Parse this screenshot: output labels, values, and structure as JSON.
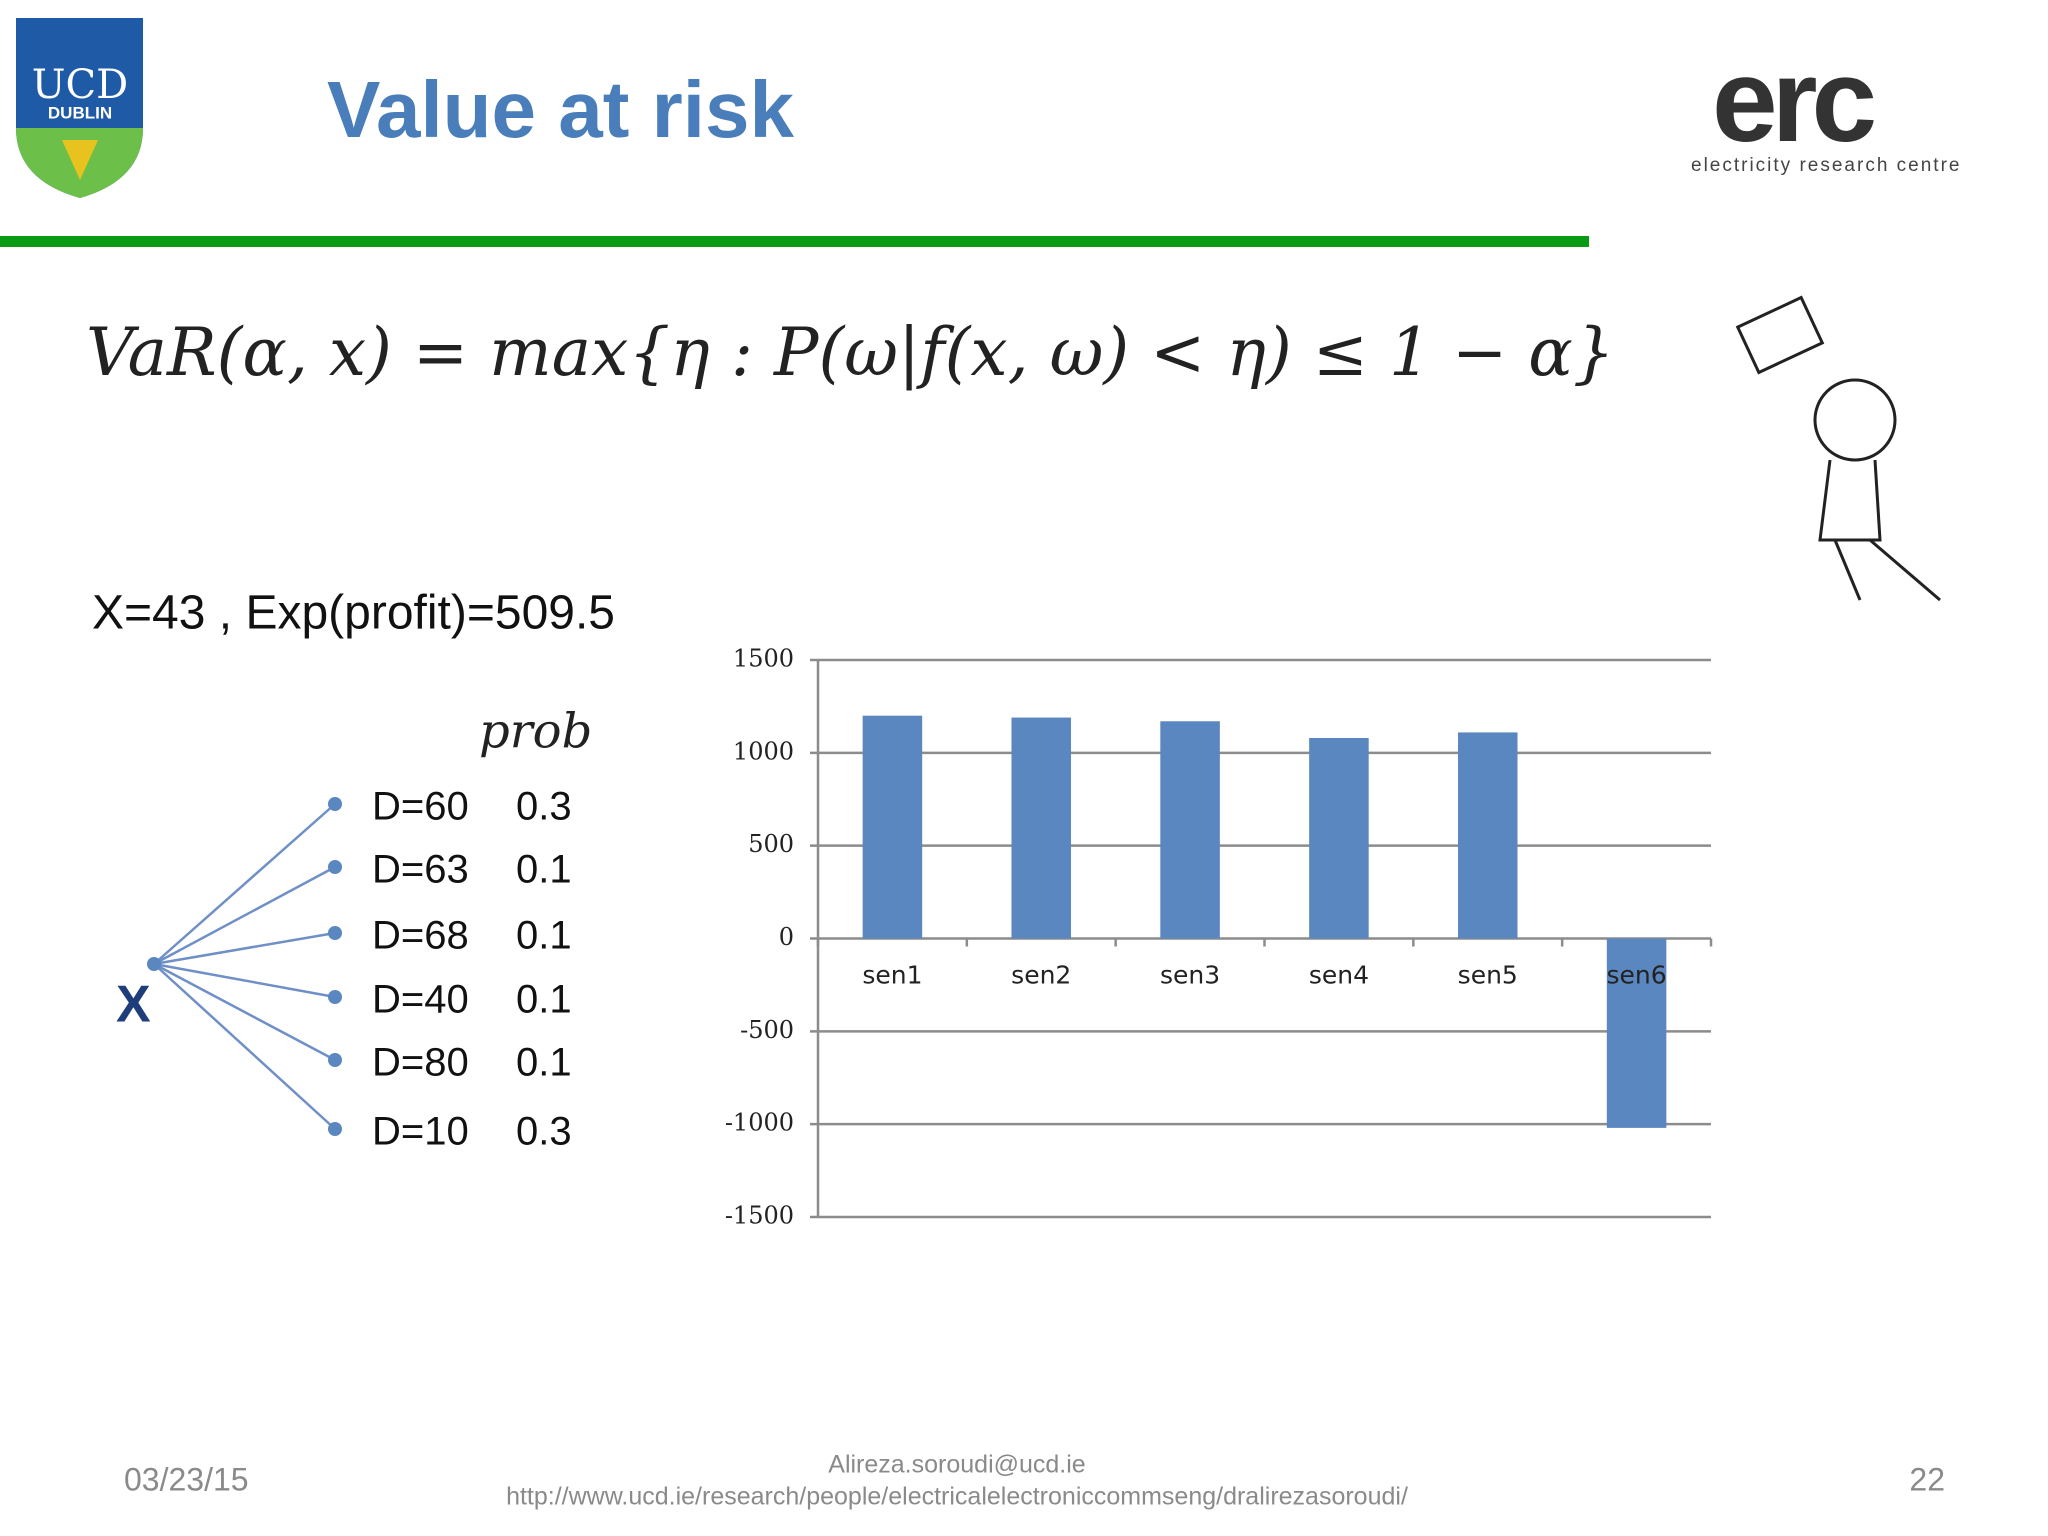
{
  "header": {
    "logo_top": "UCD",
    "logo_bottom": "DUBLIN",
    "title": "Value at risk",
    "brand": "erc",
    "brand_tagline": "electricity research centre"
  },
  "formula": "VaR(α, x) = max{η : P(ω|f(x, ω) < η) ≤ 1 − α}",
  "summary": "X=43 , Exp(profit)=509.5",
  "tree": {
    "root": "X",
    "prob_header": "prob",
    "branches": [
      {
        "label": "D=60",
        "prob": 0.3
      },
      {
        "label": "D=63",
        "prob": 0.1
      },
      {
        "label": "D=68",
        "prob": 0.1
      },
      {
        "label": "D=40",
        "prob": 0.1
      },
      {
        "label": "D=80",
        "prob": 0.1
      },
      {
        "label": "D=10",
        "prob": 0.3
      }
    ]
  },
  "chart_data": {
    "type": "bar",
    "categories": [
      "sen1",
      "sen2",
      "sen3",
      "sen4",
      "sen5",
      "sen6"
    ],
    "values": [
      1200,
      1190,
      1170,
      1080,
      1110,
      -1020
    ],
    "color": "#5b87c0",
    "ylim": [
      -1500,
      1500
    ],
    "yticks": [
      -1500,
      -1000,
      -500,
      0,
      500,
      1000,
      1500
    ],
    "grid": true
  },
  "footer": {
    "date": "03/23/15",
    "email": "Alireza.soroudi@ucd.ie",
    "url": "http://www.ucd.ie/research/people/electricalelectroniccommseng/dralirezasoroudi/",
    "page": "22"
  }
}
